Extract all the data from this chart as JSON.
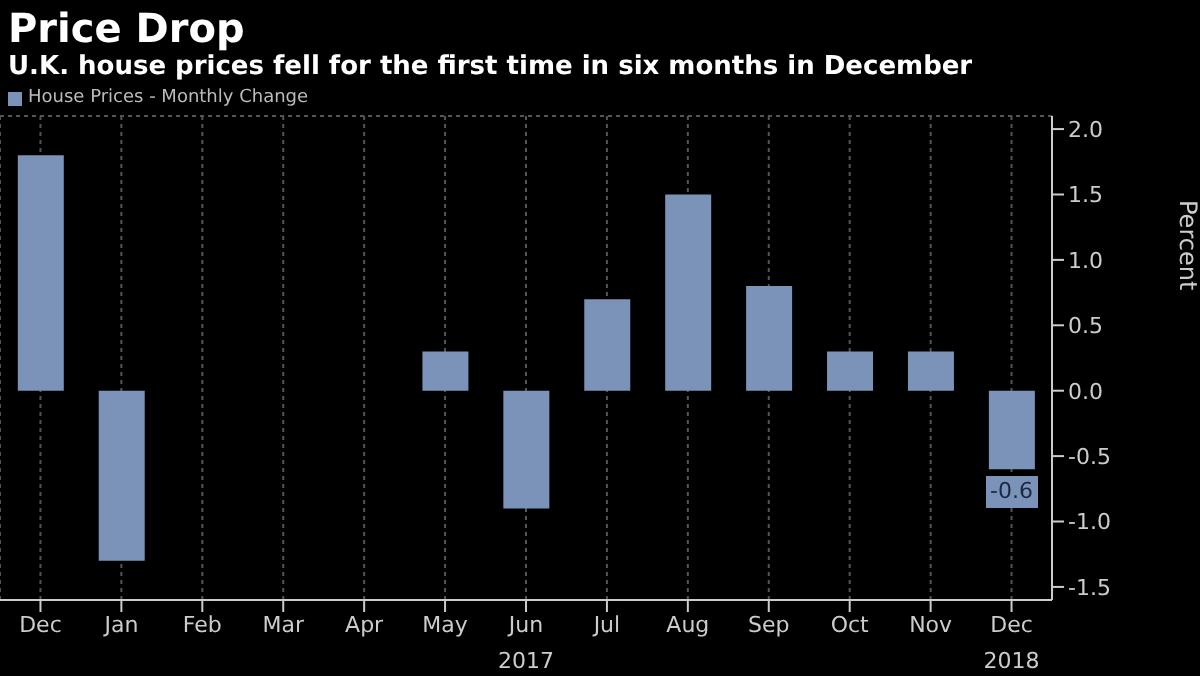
{
  "chart_data": {
    "type": "bar",
    "title": "Price Drop",
    "subtitle": "U.K. house prices fell for the first time in six months in December",
    "categories": [
      "Dec",
      "Jan",
      "Feb",
      "Mar",
      "Apr",
      "May",
      "Jun",
      "Jul",
      "Aug",
      "Sep",
      "Oct",
      "Nov",
      "Dec"
    ],
    "series": [
      {
        "name": "House Prices - Monthly Change",
        "color": "#7b93b8",
        "values": [
          1.8,
          -1.3,
          0,
          0,
          0,
          0.3,
          -0.9,
          0.7,
          1.5,
          0.8,
          0.3,
          0.3,
          -0.6
        ],
        "value_labels": [
          null,
          null,
          null,
          null,
          null,
          null,
          null,
          null,
          null,
          null,
          null,
          null,
          "-0.6"
        ]
      }
    ],
    "ylabel": "Percent",
    "ylim": [
      -1.6,
      2.1
    ],
    "yticks": [
      -1.5,
      {
        "value": -1,
        "label": "-1.0"
      },
      -0.5,
      {
        "value": 0,
        "label": "0.0"
      },
      0.5,
      {
        "value": 1,
        "label": "1.0"
      },
      1.5,
      {
        "value": 2,
        "label": "2.0"
      }
    ],
    "annotations": [
      "2017",
      "2018"
    ],
    "grid": true,
    "legend": "top left"
  }
}
